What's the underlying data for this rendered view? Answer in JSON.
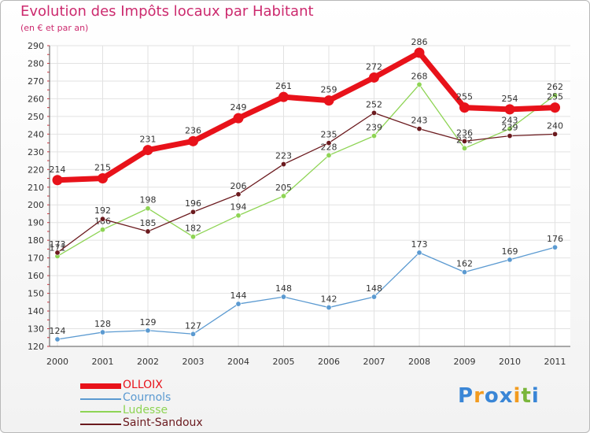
{
  "header": {
    "title": "Evolution des Impôts locaux par Habitant",
    "subtitle": "(en € et par an)"
  },
  "logo": {
    "letters": [
      "P",
      "r",
      "o",
      "x",
      "i",
      "t",
      "i"
    ],
    "colors": [
      "#3a86d6",
      "#f29b1f",
      "#3a86d6",
      "#3a86d6",
      "#f29b1f",
      "#7ab63b",
      "#3a86d6"
    ]
  },
  "chart_data": {
    "type": "line",
    "title": "Evolution des Impôts locaux par Habitant",
    "subtitle": "(en € et par an)",
    "categories": [
      "2000",
      "2001",
      "2002",
      "2003",
      "2004",
      "2005",
      "2006",
      "2007",
      "2008",
      "2009",
      "2010",
      "2011"
    ],
    "ylim": [
      120,
      290
    ],
    "yticks": [
      120,
      130,
      140,
      150,
      160,
      170,
      180,
      190,
      200,
      210,
      220,
      230,
      240,
      250,
      260,
      270,
      280,
      290
    ],
    "series": [
      {
        "name": "Cournols",
        "color": "#5b9ad1",
        "values": [
          124,
          128,
          129,
          127,
          144,
          148,
          142,
          148,
          173,
          162,
          169,
          176
        ],
        "labels": [
          "124",
          "128",
          "129",
          "127",
          "144",
          "148",
          "142",
          "148",
          "173",
          "162",
          "169",
          "176"
        ]
      },
      {
        "name": "Ludesse",
        "color": "#8ed454",
        "values": [
          171,
          186,
          198,
          182,
          194,
          205,
          228,
          239,
          268,
          232,
          243,
          262
        ],
        "labels": [
          "171",
          "186",
          "198",
          "182",
          "194",
          "205",
          "228",
          "239",
          "268",
          "232",
          "243",
          "262"
        ]
      },
      {
        "name": "Saint-Sandoux",
        "color": "#6b1a1e",
        "values": [
          173,
          192,
          185,
          196,
          206,
          223,
          235,
          252,
          243,
          236,
          239,
          240
        ],
        "labels": [
          "173",
          "192",
          "185",
          "196",
          "206",
          "223",
          "235",
          "252",
          "243",
          "236",
          "239",
          "240"
        ]
      },
      {
        "name": "OLLOIX",
        "color": "#e8121a",
        "values": [
          214,
          215,
          231,
          236,
          249,
          261,
          259,
          272,
          286,
          255,
          254,
          255
        ],
        "labels": [
          "214",
          "215",
          "231",
          "236",
          "249",
          "261",
          "259",
          "272",
          "286",
          "255",
          "254",
          "255"
        ]
      }
    ],
    "legend": [
      {
        "name": "OLLOIX",
        "color": "#e8121a"
      },
      {
        "name": "Cournols",
        "color": "#5b9ad1"
      },
      {
        "name": "Ludesse",
        "color": "#8ed454"
      },
      {
        "name": "Saint-Sandoux",
        "color": "#6b1a1e"
      }
    ],
    "legend_position": "bottom-left",
    "grid": true
  }
}
